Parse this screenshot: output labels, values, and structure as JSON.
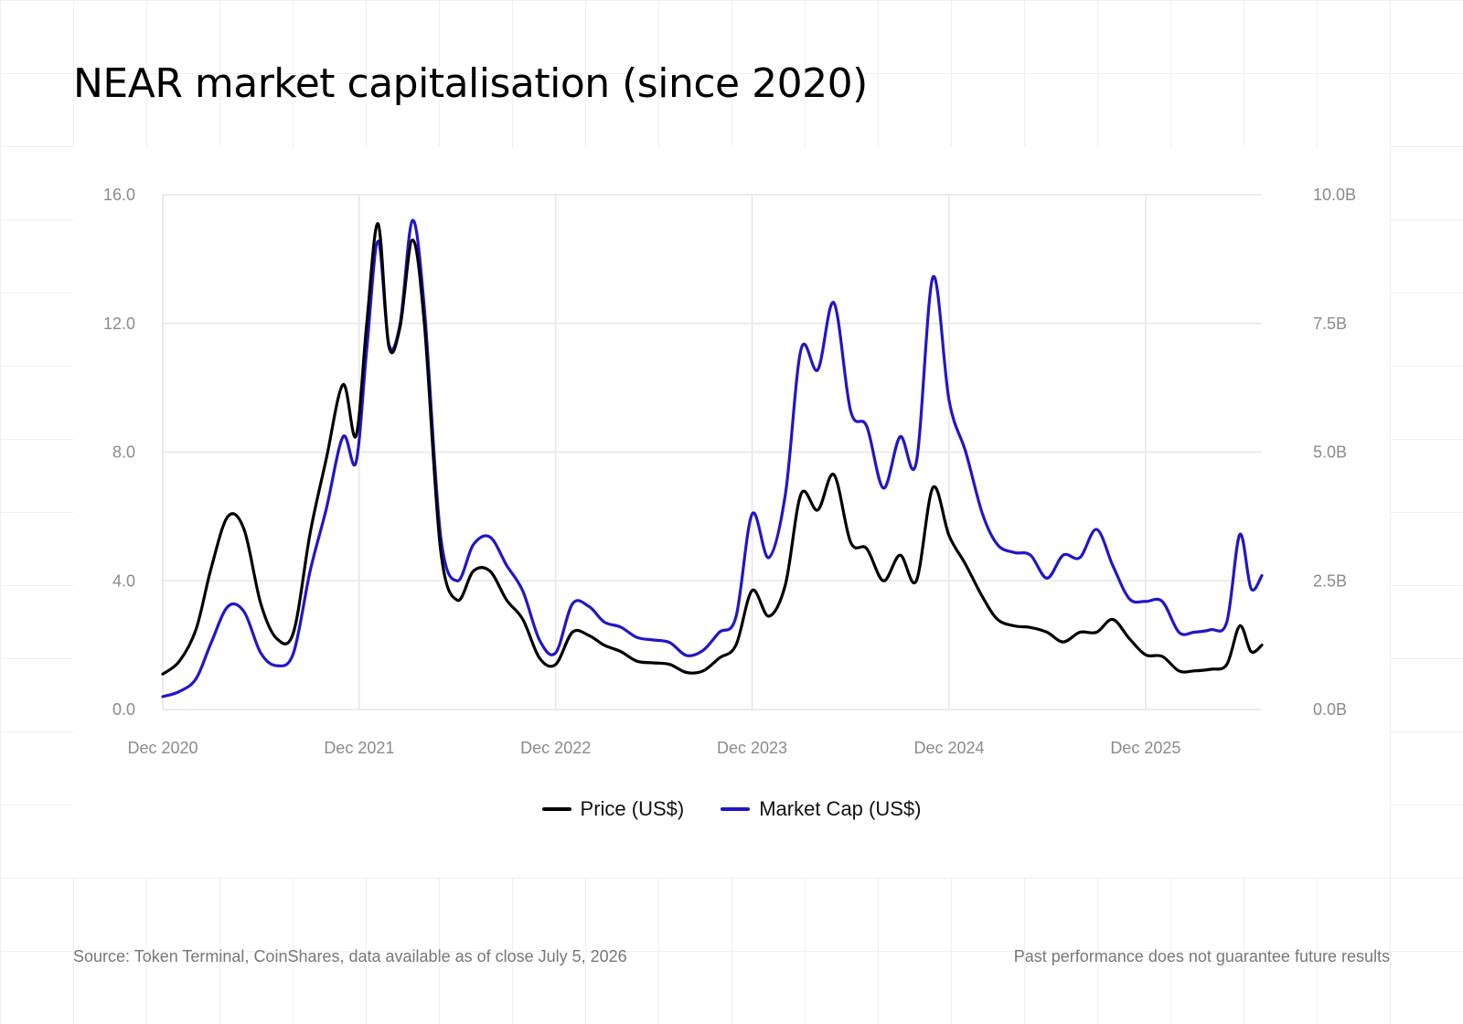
{
  "page": {
    "title": "NEAR market capitalisation (since 2020)",
    "source": "Source: Token Terminal, CoinShares, data available as of close July 5, 2026",
    "disclaimer": "Past performance does not guarantee future results"
  },
  "chart_data": {
    "type": "line",
    "title": "NEAR market capitalisation (since 2020)",
    "xlabel": "",
    "ylabel": "",
    "x_ticks": [
      "Dec 2020",
      "Dec 2021",
      "Dec 2022",
      "Dec 2023",
      "Dec 2024",
      "Dec 2025"
    ],
    "y_left": {
      "range": [
        0,
        16
      ],
      "ticks": [
        "0.0",
        "4.0",
        "8.0",
        "12.0",
        "16.0"
      ]
    },
    "y_right": {
      "range": [
        0,
        10
      ],
      "ticks": [
        "0.0B",
        "2.5B",
        "5.0B",
        "7.5B",
        "10.0B"
      ],
      "unit": "B"
    },
    "grid": true,
    "legend_position": "bottom-center",
    "x_range": [
      "2020-12-01",
      "2026-07-05"
    ],
    "series": [
      {
        "name": "Price (US$)",
        "axis": "left",
        "color": "#000000",
        "points": [
          [
            "2020-12-01",
            1.1
          ],
          [
            "2021-01-01",
            1.5
          ],
          [
            "2021-02-01",
            2.5
          ],
          [
            "2021-03-01",
            4.4
          ],
          [
            "2021-04-01",
            6.0
          ],
          [
            "2021-05-01",
            5.6
          ],
          [
            "2021-06-01",
            3.3
          ],
          [
            "2021-07-01",
            2.2
          ],
          [
            "2021-08-01",
            2.4
          ],
          [
            "2021-09-01",
            5.5
          ],
          [
            "2021-10-01",
            7.8
          ],
          [
            "2021-11-01",
            10.1
          ],
          [
            "2021-11-25",
            8.5
          ],
          [
            "2021-12-15",
            12.0
          ],
          [
            "2022-01-05",
            15.1
          ],
          [
            "2022-01-25",
            11.3
          ],
          [
            "2022-02-15",
            11.9
          ],
          [
            "2022-03-10",
            14.6
          ],
          [
            "2022-04-01",
            12.0
          ],
          [
            "2022-05-01",
            5.0
          ],
          [
            "2022-06-01",
            3.4
          ],
          [
            "2022-07-01",
            4.3
          ],
          [
            "2022-08-01",
            4.3
          ],
          [
            "2022-09-01",
            3.4
          ],
          [
            "2022-10-01",
            2.8
          ],
          [
            "2022-11-01",
            1.6
          ],
          [
            "2022-12-01",
            1.4
          ],
          [
            "2023-01-01",
            2.4
          ],
          [
            "2023-02-01",
            2.3
          ],
          [
            "2023-03-01",
            2.0
          ],
          [
            "2023-04-01",
            1.8
          ],
          [
            "2023-05-01",
            1.5
          ],
          [
            "2023-06-01",
            1.45
          ],
          [
            "2023-07-01",
            1.4
          ],
          [
            "2023-08-01",
            1.15
          ],
          [
            "2023-09-01",
            1.2
          ],
          [
            "2023-10-01",
            1.6
          ],
          [
            "2023-11-01",
            2.0
          ],
          [
            "2023-12-01",
            3.7
          ],
          [
            "2024-01-01",
            2.9
          ],
          [
            "2024-02-01",
            3.9
          ],
          [
            "2024-03-01",
            6.7
          ],
          [
            "2024-04-01",
            6.2
          ],
          [
            "2024-05-01",
            7.3
          ],
          [
            "2024-06-01",
            5.2
          ],
          [
            "2024-07-01",
            5.0
          ],
          [
            "2024-08-01",
            4.0
          ],
          [
            "2024-09-01",
            4.8
          ],
          [
            "2024-10-01",
            4.0
          ],
          [
            "2024-11-01",
            6.9
          ],
          [
            "2024-12-01",
            5.4
          ],
          [
            "2025-01-01",
            4.5
          ],
          [
            "2025-02-01",
            3.5
          ],
          [
            "2025-03-01",
            2.8
          ],
          [
            "2025-04-01",
            2.6
          ],
          [
            "2025-05-01",
            2.55
          ],
          [
            "2025-06-01",
            2.4
          ],
          [
            "2025-07-01",
            2.1
          ],
          [
            "2025-08-01",
            2.4
          ],
          [
            "2025-09-01",
            2.4
          ],
          [
            "2025-10-01",
            2.8
          ],
          [
            "2025-11-01",
            2.2
          ],
          [
            "2025-12-01",
            1.7
          ],
          [
            "2026-01-01",
            1.65
          ],
          [
            "2026-02-01",
            1.2
          ],
          [
            "2026-03-01",
            1.2
          ],
          [
            "2026-04-01",
            1.25
          ],
          [
            "2026-05-01",
            1.4
          ],
          [
            "2026-05-25",
            2.6
          ],
          [
            "2026-06-15",
            1.8
          ],
          [
            "2026-07-05",
            2.0
          ]
        ]
      },
      {
        "name": "Market Cap (US$)",
        "axis": "right",
        "color": "#2016c8",
        "points": [
          [
            "2020-12-01",
            0.25
          ],
          [
            "2021-01-01",
            0.35
          ],
          [
            "2021-02-01",
            0.6
          ],
          [
            "2021-03-01",
            1.3
          ],
          [
            "2021-04-01",
            2.0
          ],
          [
            "2021-05-01",
            1.9
          ],
          [
            "2021-06-01",
            1.1
          ],
          [
            "2021-07-01",
            0.85
          ],
          [
            "2021-08-01",
            1.1
          ],
          [
            "2021-09-01",
            2.7
          ],
          [
            "2021-10-01",
            3.9
          ],
          [
            "2021-11-01",
            5.3
          ],
          [
            "2021-11-25",
            4.8
          ],
          [
            "2021-12-15",
            7.0
          ],
          [
            "2022-01-05",
            9.1
          ],
          [
            "2022-01-25",
            7.1
          ],
          [
            "2022-02-15",
            7.5
          ],
          [
            "2022-03-10",
            9.5
          ],
          [
            "2022-04-01",
            7.8
          ],
          [
            "2022-05-01",
            3.4
          ],
          [
            "2022-06-01",
            2.5
          ],
          [
            "2022-07-01",
            3.2
          ],
          [
            "2022-08-01",
            3.35
          ],
          [
            "2022-09-01",
            2.8
          ],
          [
            "2022-10-01",
            2.3
          ],
          [
            "2022-11-01",
            1.35
          ],
          [
            "2022-12-01",
            1.1
          ],
          [
            "2023-01-01",
            2.05
          ],
          [
            "2023-02-01",
            2.0
          ],
          [
            "2023-03-01",
            1.7
          ],
          [
            "2023-04-01",
            1.6
          ],
          [
            "2023-05-01",
            1.4
          ],
          [
            "2023-06-01",
            1.35
          ],
          [
            "2023-07-01",
            1.3
          ],
          [
            "2023-08-01",
            1.05
          ],
          [
            "2023-09-01",
            1.15
          ],
          [
            "2023-10-01",
            1.5
          ],
          [
            "2023-11-01",
            1.8
          ],
          [
            "2023-12-01",
            3.8
          ],
          [
            "2024-01-01",
            2.95
          ],
          [
            "2024-02-01",
            4.2
          ],
          [
            "2024-03-01",
            7.0
          ],
          [
            "2024-04-01",
            6.6
          ],
          [
            "2024-05-01",
            7.9
          ],
          [
            "2024-06-01",
            5.8
          ],
          [
            "2024-07-01",
            5.5
          ],
          [
            "2024-08-01",
            4.3
          ],
          [
            "2024-09-01",
            5.3
          ],
          [
            "2024-10-01",
            4.8
          ],
          [
            "2024-11-01",
            8.4
          ],
          [
            "2024-12-01",
            6.0
          ],
          [
            "2025-01-01",
            5.0
          ],
          [
            "2025-02-01",
            3.8
          ],
          [
            "2025-03-01",
            3.2
          ],
          [
            "2025-04-01",
            3.05
          ],
          [
            "2025-05-01",
            3.0
          ],
          [
            "2025-06-01",
            2.55
          ],
          [
            "2025-07-01",
            3.0
          ],
          [
            "2025-08-01",
            2.95
          ],
          [
            "2025-09-01",
            3.5
          ],
          [
            "2025-10-01",
            2.8
          ],
          [
            "2025-11-01",
            2.15
          ],
          [
            "2025-12-01",
            2.1
          ],
          [
            "2026-01-01",
            2.1
          ],
          [
            "2026-02-01",
            1.5
          ],
          [
            "2026-03-01",
            1.5
          ],
          [
            "2026-04-01",
            1.55
          ],
          [
            "2026-05-01",
            1.7
          ],
          [
            "2026-05-25",
            3.4
          ],
          [
            "2026-06-15",
            2.35
          ],
          [
            "2026-07-05",
            2.6
          ]
        ]
      }
    ]
  }
}
